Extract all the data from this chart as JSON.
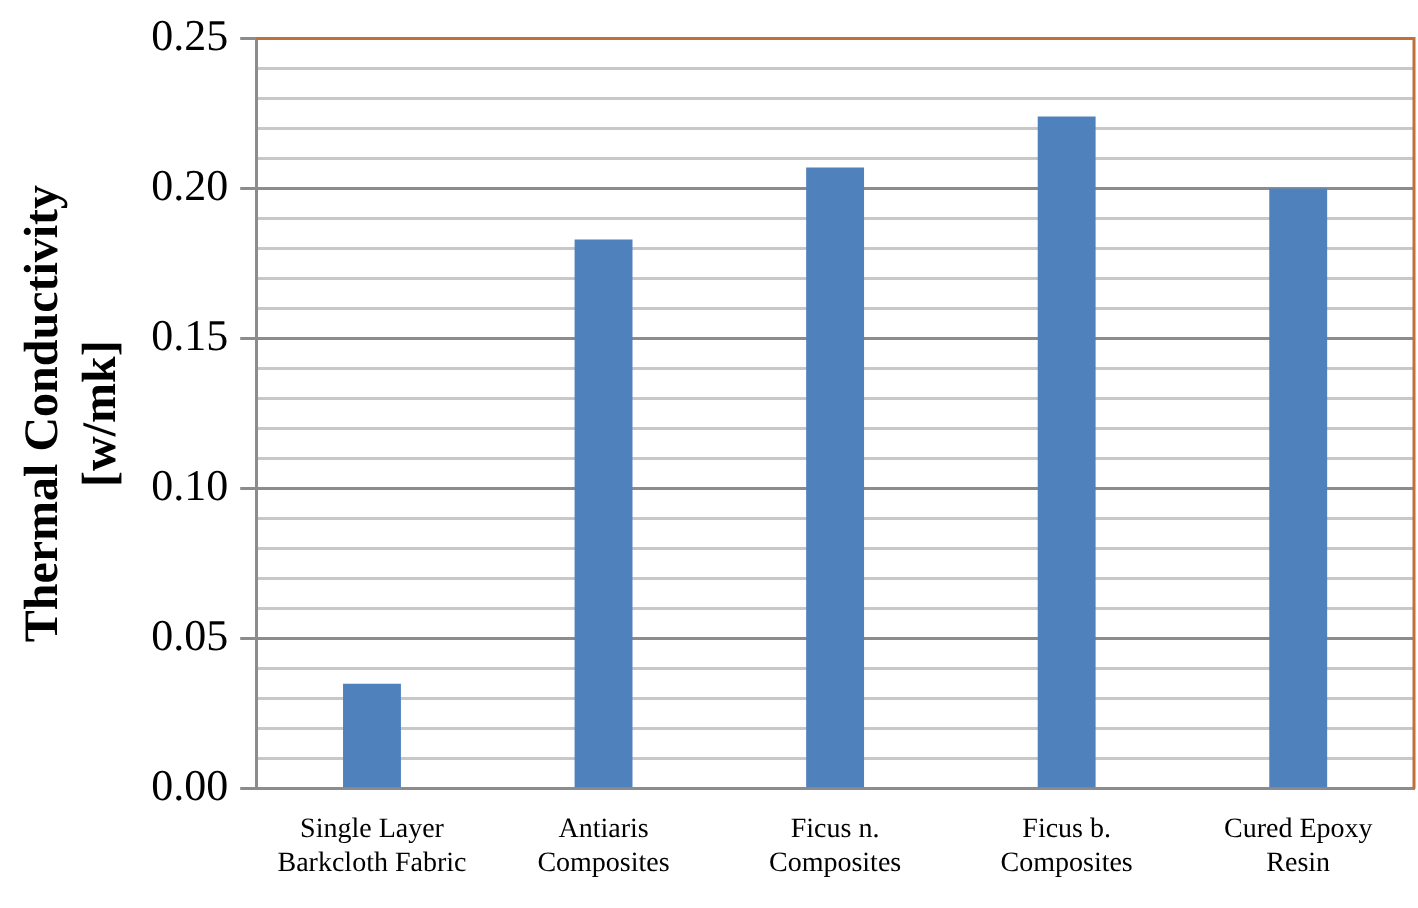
{
  "chart_data": {
    "type": "bar",
    "ylabel": "Thermal Conductivity [w/mk]",
    "categories": [
      "Single Layer Barkcloth Fabric",
      "Antiaris Composites",
      "Ficus n. Composites",
      "Ficus b. Composites",
      "Cured Epoxy Resin"
    ],
    "values": [
      0.035,
      0.183,
      0.207,
      0.224,
      0.2
    ],
    "color": "#4f81bd",
    "ylim": [
      0,
      0.25
    ],
    "yticks": [
      {
        "value": 0,
        "label": "0.00"
      },
      {
        "value": 0.01,
        "label": null
      },
      {
        "value": 0.02,
        "label": null
      },
      {
        "value": 0.03,
        "label": null
      },
      {
        "value": 0.04,
        "label": null
      },
      {
        "value": 0.05,
        "label": "0.05"
      },
      {
        "value": 0.06,
        "label": null
      },
      {
        "value": 0.07,
        "label": null
      },
      {
        "value": 0.08,
        "label": null
      },
      {
        "value": 0.09,
        "label": null
      },
      {
        "value": 0.1,
        "label": "0.10"
      },
      {
        "value": 0.11,
        "label": null
      },
      {
        "value": 0.12,
        "label": null
      },
      {
        "value": 0.13,
        "label": null
      },
      {
        "value": 0.14,
        "label": null
      },
      {
        "value": 0.15,
        "label": "0.15"
      },
      {
        "value": 0.16,
        "label": null
      },
      {
        "value": 0.17,
        "label": null
      },
      {
        "value": 0.18,
        "label": null
      },
      {
        "value": 0.19,
        "label": null
      },
      {
        "value": 0.2,
        "label": "0.20"
      },
      {
        "value": 0.21,
        "label": null
      },
      {
        "value": 0.22,
        "label": null
      },
      {
        "value": 0.23,
        "label": null
      },
      {
        "value": 0.24,
        "label": null
      },
      {
        "value": 0.25,
        "label": "0.25"
      }
    ],
    "grid": "y"
  }
}
